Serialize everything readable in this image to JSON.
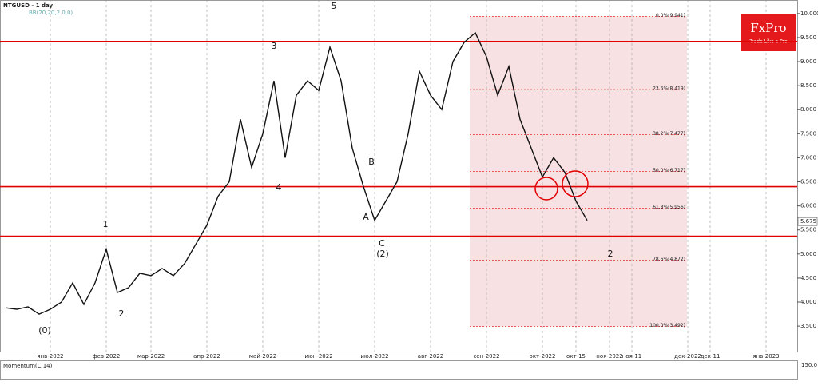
{
  "chart_data": {
    "type": "line",
    "title": "NTGUSD - 1 day",
    "indicator": "BB(20,20,2.0,0)",
    "lower_panel": {
      "title": "Momentum(C,14)",
      "tick": "150.0"
    },
    "logo": {
      "name": "FxPro",
      "tagline": "Trade Like a Pro"
    },
    "categories": [
      null,
      null,
      null,
      null,
      "янв-2022",
      null,
      null,
      null,
      null,
      "фев-2022",
      null,
      null,
      null,
      "мар-2022",
      null,
      null,
      null,
      null,
      "апр-2022",
      null,
      null,
      null,
      null,
      "май-2022",
      null,
      null,
      null,
      null,
      "июн-2022",
      null,
      null,
      null,
      null,
      "июл-2022",
      null,
      null,
      null,
      null,
      "авг-2022",
      null,
      null,
      null,
      null,
      "сен-2022",
      null,
      null,
      null,
      null,
      "окт-2022",
      null,
      null,
      "окт-15",
      null,
      null,
      "ноя-2022",
      null,
      "ноя-11",
      null,
      null,
      null,
      null,
      "дек-2022",
      null,
      "дек-11",
      null,
      null,
      null,
      null,
      "янв-2023",
      null,
      null
    ],
    "values": [
      3.88,
      3.85,
      3.9,
      3.75,
      3.85,
      4.0,
      4.4,
      3.95,
      4.4,
      5.1,
      4.2,
      4.3,
      4.6,
      4.55,
      4.7,
      4.55,
      4.8,
      5.2,
      5.6,
      6.2,
      6.5,
      7.8,
      6.8,
      7.5,
      8.6,
      7.0,
      8.3,
      8.6,
      8.4,
      9.3,
      8.6,
      7.2,
      6.4,
      5.7,
      6.1,
      6.5,
      7.5,
      8.8,
      8.3,
      8.0,
      9.0,
      9.4,
      9.6,
      9.1,
      8.3,
      8.9,
      7.8,
      7.2,
      6.6,
      7.0,
      6.7,
      6.1,
      5.7,
      null,
      null,
      null,
      null,
      null,
      null,
      null,
      null,
      null,
      null,
      null,
      null,
      null,
      null,
      null,
      null,
      null,
      null
    ],
    "color": "#111111",
    "ylim": [
      2.97,
      10.28
    ],
    "yticks": [
      {
        "value": 3.5,
        "label": "3.500"
      },
      {
        "value": 4,
        "label": "4.000"
      },
      {
        "value": 4.5,
        "label": "4.500"
      },
      {
        "value": 5,
        "label": "5.000"
      },
      {
        "value": 5.5,
        "label": "5.500"
      },
      {
        "value": 6,
        "label": "6.000"
      },
      {
        "value": 6.5,
        "label": "6.500"
      },
      {
        "value": 7,
        "label": "7.000"
      },
      {
        "value": 7.5,
        "label": "7.500"
      },
      {
        "value": 8,
        "label": "8.000"
      },
      {
        "value": 8.5,
        "label": "8.500"
      },
      {
        "value": 9,
        "label": "9.000"
      },
      {
        "value": 9.5,
        "label": "9.500"
      },
      {
        "value": 10,
        "label": "10.000"
      }
    ],
    "last_price": 5.675,
    "hlines": [
      9.42,
      6.4,
      5.37
    ],
    "hline_color": "#e00000",
    "fib": [
      {
        "value": 9.941,
        "label": "0.0%(9.941)"
      },
      {
        "value": 8.419,
        "label": "23.6%(8.419)"
      },
      {
        "value": 7.477,
        "label": "38.2%(7.477)"
      },
      {
        "value": 6.717,
        "label": "50.0%(6.717)"
      },
      {
        "value": 5.956,
        "label": "61.8%(5.956)"
      },
      {
        "value": 4.872,
        "label": "78.6%(4.872)"
      },
      {
        "value": 3.492,
        "label": "100.0%(3.492)"
      }
    ],
    "annotations": [
      "1",
      "2",
      "3",
      "4",
      "5",
      "(0)",
      "(2)",
      "A",
      "B",
      "C",
      "2"
    ],
    "grid": true
  }
}
